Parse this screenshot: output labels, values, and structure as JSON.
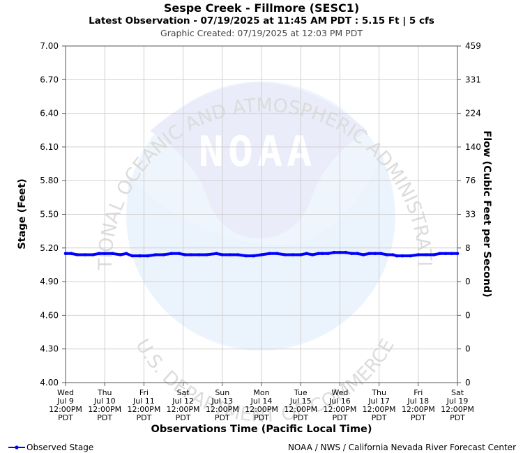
{
  "title": "Sespe Creek - Fillmore (SESC1)",
  "subtitle": "Latest Observation - 07/19/2025 at 11:45 AM PDT : 5.15 Ft | 5 cfs",
  "created": "Graphic Created: 07/19/2025 at 12:03 PM PDT",
  "footer_credit": "NOAA / NWS / California Nevada River Forecast Center",
  "watermark": {
    "logo_text": "NOAA",
    "arc_top": "NATIONAL OCEANIC AND ATMOSPHERIC ADMINISTRATION",
    "arc_bottom": "U.S. DEPARTMENT OF COMMERCE"
  },
  "chart_data": {
    "type": "line",
    "ylabel": "Stage (Feet)",
    "y2label": "Flow (Cubic Feet per Second)",
    "xlabel": "Observations Time (Pacific Local Time)",
    "ylim": [
      4.0,
      7.0
    ],
    "y_ticks": [
      "4.00",
      "4.30",
      "4.60",
      "4.90",
      "5.20",
      "5.50",
      "5.80",
      "6.10",
      "6.40",
      "6.70",
      "7.00"
    ],
    "y2_ticks": [
      "0",
      "0",
      "0",
      "0",
      "8",
      "33",
      "76",
      "140",
      "224",
      "331",
      "459"
    ],
    "x_range_days": [
      0,
      10
    ],
    "x_ticks": [
      [
        "Wed",
        "Jul 9",
        "12:00PM",
        "PDT"
      ],
      [
        "Thu",
        "Jul 10",
        "12:00PM",
        "PDT"
      ],
      [
        "Fri",
        "Jul 11",
        "12:00PM",
        "PDT"
      ],
      [
        "Sat",
        "Jul 12",
        "12:00PM",
        "PDT"
      ],
      [
        "Sun",
        "Jul 13",
        "12:00PM",
        "PDT"
      ],
      [
        "Mon",
        "Jul 14",
        "12:00PM",
        "PDT"
      ],
      [
        "Tue",
        "Jul 15",
        "12:00PM",
        "PDT"
      ],
      [
        "Wed",
        "Jul 16",
        "12:00PM",
        "PDT"
      ],
      [
        "Thu",
        "Jul 17",
        "12:00PM",
        "PDT"
      ],
      [
        "Fri",
        "Jul 18",
        "12:00PM",
        "PDT"
      ],
      [
        "Sat",
        "Jul 19",
        "12:00PM",
        "PDT"
      ]
    ],
    "grid": true,
    "legend_position": "bottom-left",
    "series": [
      {
        "name": "Observed Stage",
        "color": "#0000ff",
        "points": [
          [
            0.0,
            5.15
          ],
          [
            0.15,
            5.15
          ],
          [
            0.3,
            5.14
          ],
          [
            0.5,
            5.14
          ],
          [
            0.7,
            5.14
          ],
          [
            0.85,
            5.15
          ],
          [
            1.0,
            5.15
          ],
          [
            1.2,
            5.15
          ],
          [
            1.4,
            5.14
          ],
          [
            1.55,
            5.15
          ],
          [
            1.7,
            5.13
          ],
          [
            1.9,
            5.13
          ],
          [
            2.1,
            5.13
          ],
          [
            2.3,
            5.14
          ],
          [
            2.5,
            5.14
          ],
          [
            2.7,
            5.15
          ],
          [
            2.9,
            5.15
          ],
          [
            3.05,
            5.14
          ],
          [
            3.2,
            5.14
          ],
          [
            3.4,
            5.14
          ],
          [
            3.6,
            5.14
          ],
          [
            3.85,
            5.15
          ],
          [
            4.0,
            5.14
          ],
          [
            4.2,
            5.14
          ],
          [
            4.4,
            5.14
          ],
          [
            4.6,
            5.13
          ],
          [
            4.8,
            5.13
          ],
          [
            5.0,
            5.14
          ],
          [
            5.2,
            5.15
          ],
          [
            5.4,
            5.15
          ],
          [
            5.6,
            5.14
          ],
          [
            5.8,
            5.14
          ],
          [
            6.0,
            5.14
          ],
          [
            6.15,
            5.15
          ],
          [
            6.3,
            5.14
          ],
          [
            6.45,
            5.15
          ],
          [
            6.55,
            5.15
          ],
          [
            6.7,
            5.15
          ],
          [
            6.85,
            5.16
          ],
          [
            7.0,
            5.16
          ],
          [
            7.15,
            5.16
          ],
          [
            7.3,
            5.15
          ],
          [
            7.45,
            5.15
          ],
          [
            7.6,
            5.14
          ],
          [
            7.75,
            5.15
          ],
          [
            7.9,
            5.15
          ],
          [
            8.05,
            5.15
          ],
          [
            8.2,
            5.14
          ],
          [
            8.35,
            5.14
          ],
          [
            8.45,
            5.13
          ],
          [
            8.6,
            5.13
          ],
          [
            8.8,
            5.13
          ],
          [
            9.0,
            5.14
          ],
          [
            9.2,
            5.14
          ],
          [
            9.4,
            5.14
          ],
          [
            9.55,
            5.15
          ],
          [
            9.7,
            5.15
          ],
          [
            9.85,
            5.15
          ],
          [
            10.0,
            5.15
          ]
        ]
      }
    ]
  },
  "legend": {
    "observed": "Observed Stage"
  }
}
